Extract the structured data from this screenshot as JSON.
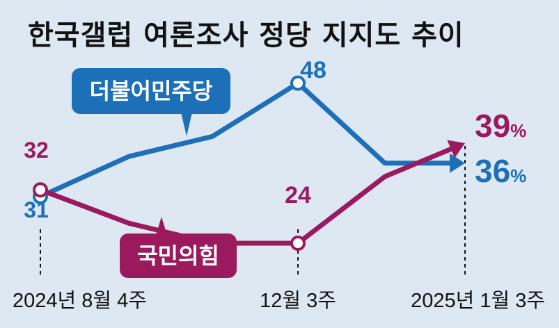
{
  "title": "한국갤럽 여론조사 정당 지지도 추이",
  "chart_data": {
    "type": "line",
    "title": "한국갤럽 여론조사 정당 지지도 추이",
    "x": [
      "2024년 8월 4주",
      "",
      "",
      "12월 3주",
      "",
      "2025년 1월 3주"
    ],
    "x_tick_labels": [
      {
        "index": 0,
        "label": "2024년 8월 4주"
      },
      {
        "index": 3,
        "label": "12월 3주"
      },
      {
        "index": 5,
        "label": "2025년 1월 3주"
      }
    ],
    "series": [
      {
        "name": "더불어민주당",
        "color": "#1d6fb8",
        "values": [
          31,
          37,
          40,
          48,
          36,
          36
        ],
        "point_labels": [
          {
            "index": 0,
            "text": "31"
          },
          {
            "index": 3,
            "text": "48"
          },
          {
            "index": 5,
            "text": "36",
            "unit": "%"
          }
        ]
      },
      {
        "name": "국민의힘",
        "color": "#9b1a5e",
        "values": [
          32,
          27,
          24,
          24,
          34,
          39
        ],
        "point_labels": [
          {
            "index": 0,
            "text": "32"
          },
          {
            "index": 3,
            "text": "24"
          },
          {
            "index": 5,
            "text": "39",
            "unit": "%"
          }
        ]
      }
    ],
    "ylim": [
      20,
      50
    ],
    "grid": false,
    "legend": "inline-boxes"
  }
}
